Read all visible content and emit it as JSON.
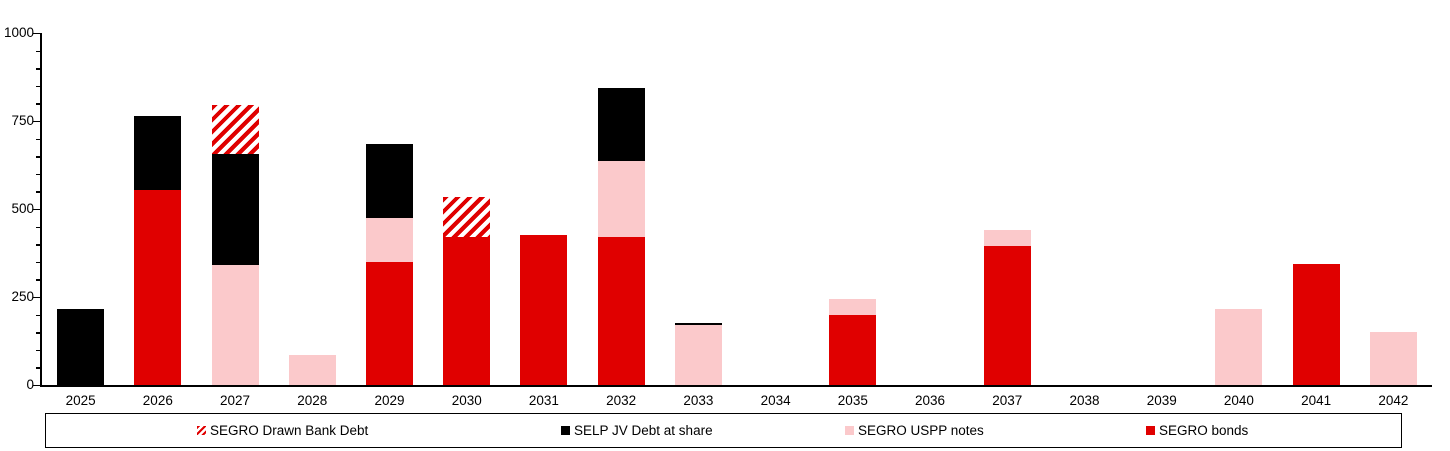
{
  "chart_data": {
    "type": "bar",
    "stacked": true,
    "title": "",
    "xlabel": "",
    "ylabel": "",
    "ylim": [
      0,
      1000
    ],
    "y_major_tick_step": 250,
    "y_minor_tick_step": 50,
    "y_tick_labels": [
      "0",
      "250",
      "500",
      "750",
      "1000"
    ],
    "grid": false,
    "categories": [
      "2025",
      "2026",
      "2027",
      "2028",
      "2029",
      "2030",
      "2031",
      "2032",
      "2033",
      "2034",
      "2035",
      "2036",
      "2037",
      "2038",
      "2039",
      "2040",
      "2041",
      "2042"
    ],
    "series": [
      {
        "name": "SEGRO bonds",
        "color": "#E00000",
        "pattern": "solid",
        "values": [
          0,
          555,
          0,
          0,
          350,
          420,
          425,
          420,
          0,
          0,
          200,
          0,
          395,
          0,
          0,
          0,
          345,
          0
        ]
      },
      {
        "name": "SEGRO USPP notes",
        "color": "#FBC9CB",
        "pattern": "solid",
        "values": [
          0,
          0,
          340,
          85,
          125,
          0,
          0,
          215,
          170,
          0,
          45,
          0,
          45,
          0,
          0,
          215,
          0,
          150
        ]
      },
      {
        "name": "SELP JV Debt at share",
        "color": "#000000",
        "pattern": "solid",
        "values": [
          215,
          210,
          315,
          0,
          210,
          0,
          0,
          210,
          5,
          0,
          0,
          0,
          0,
          0,
          0,
          0,
          0,
          0
        ]
      },
      {
        "name": "SEGRO Drawn Bank Debt",
        "color": "#E00000",
        "pattern": "diagonal-hatch-red-on-white",
        "values": [
          0,
          0,
          140,
          0,
          0,
          115,
          0,
          0,
          0,
          0,
          0,
          0,
          0,
          0,
          0,
          0,
          0,
          0
        ]
      }
    ],
    "legend_position": "bottom"
  },
  "legend": {
    "items": [
      {
        "label": "SEGRO Drawn Bank Debt",
        "swatch": "hatch"
      },
      {
        "label": "SELP JV Debt at share",
        "swatch": "#000000"
      },
      {
        "label": "SEGRO USPP notes",
        "swatch": "#FBC9CB"
      },
      {
        "label": "SEGRO bonds",
        "swatch": "#E00000"
      }
    ]
  },
  "colors": {
    "bonds_red": "#E00000",
    "uspp_pink": "#FBC9CB",
    "selp_black": "#000000",
    "axis_black": "#000000",
    "background": "#FFFFFF"
  }
}
